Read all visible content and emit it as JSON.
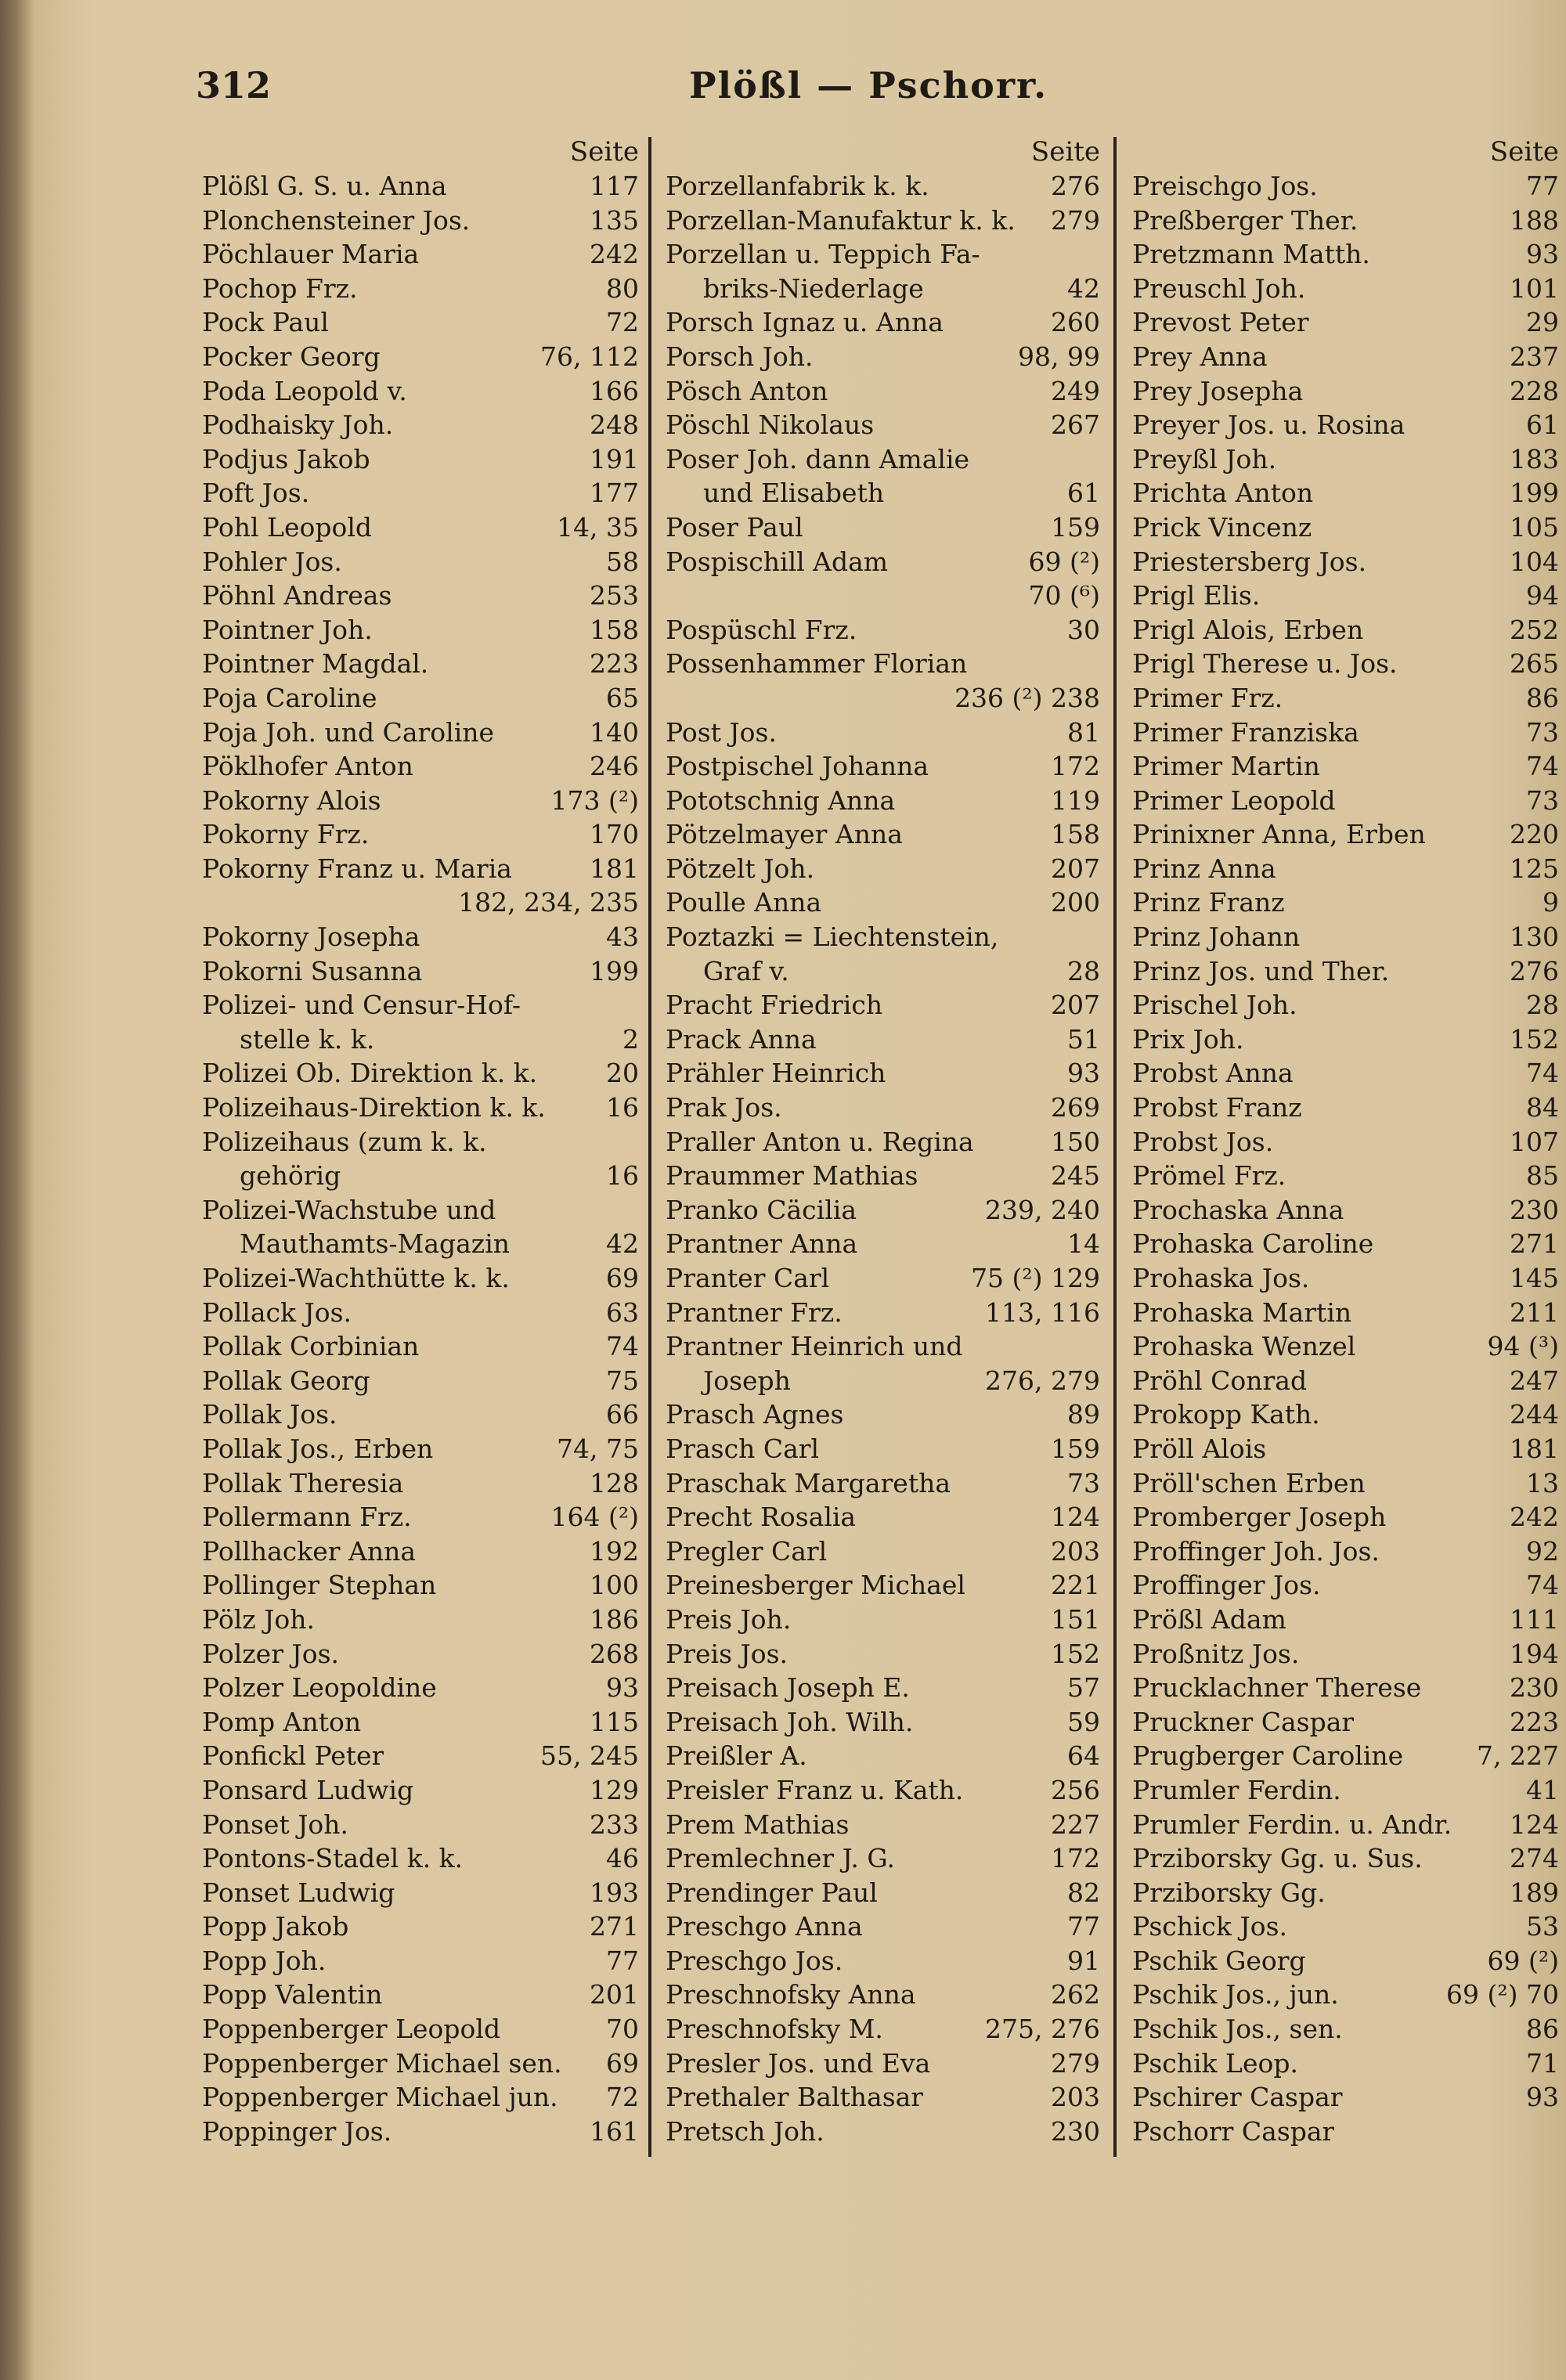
{
  "header": {
    "page_number": "312",
    "title": "Plößl — Pschorr."
  },
  "columns": [
    {
      "heading": "Seite",
      "entries": [
        {
          "name": "Plößl G. S. u. Anna",
          "pages": "117"
        },
        {
          "name": "Plonchensteiner Jos.",
          "pages": "135"
        },
        {
          "name": "Pöchlauer Maria",
          "pages": "242"
        },
        {
          "name": "Pochop Frz.",
          "pages": "80"
        },
        {
          "name": "Pock Paul",
          "pages": "72"
        },
        {
          "name": "Pocker Georg",
          "pages": "76, 112"
        },
        {
          "name": "Poda Leopold v.",
          "pages": "166"
        },
        {
          "name": "Podhaisky Joh.",
          "pages": "248"
        },
        {
          "name": "Podjus Jakob",
          "pages": "191"
        },
        {
          "name": "Poft Jos.",
          "pages": "177"
        },
        {
          "name": "Pohl Leopold",
          "pages": "14, 35"
        },
        {
          "name": "Pohler Jos.",
          "pages": "58"
        },
        {
          "name": "Pöhnl Andreas",
          "pages": "253"
        },
        {
          "name": "Pointner Joh.",
          "pages": "158"
        },
        {
          "name": "Pointner Magdal.",
          "pages": "223"
        },
        {
          "name": "Poja Caroline",
          "pages": "65"
        },
        {
          "name": "Poja Joh. und Caroline",
          "pages": "140"
        },
        {
          "name": "Pöklhofer Anton",
          "pages": "246"
        },
        {
          "name": "Pokorny Alois",
          "pages": "173 (²)"
        },
        {
          "name": "Pokorny Frz.",
          "pages": "170"
        },
        {
          "name": "Pokorny Franz u. Maria",
          "pages": "181",
          "pages_cont": "182, 234, 235"
        },
        {
          "name": "Pokorny Josepha",
          "pages": "43"
        },
        {
          "name": "Pokorni Susanna",
          "pages": "199"
        },
        {
          "name": "Polizei- und Censur-Hof-",
          "name_cont": "stelle k. k.",
          "pages_cont": "2"
        },
        {
          "name": "Polizei Ob. Direktion k. k.",
          "pages": "20"
        },
        {
          "name": "Polizeihaus-Direktion k. k.",
          "pages": "16"
        },
        {
          "name": "Polizeihaus (zum k. k.",
          "name_cont": "gehörig",
          "pages_cont": "16"
        },
        {
          "name": "Polizei-Wachstube und",
          "name_cont": "Mauthamts-Magazin",
          "pages_cont": "42"
        },
        {
          "name": "Polizei-Wachthütte k. k.",
          "pages": "69"
        },
        {
          "name": "Pollack Jos.",
          "pages": "63"
        },
        {
          "name": "Pollak Corbinian",
          "pages": "74"
        },
        {
          "name": "Pollak Georg",
          "pages": "75"
        },
        {
          "name": "Pollak Jos.",
          "pages": "66"
        },
        {
          "name": "Pollak Jos., Erben",
          "pages": "74, 75"
        },
        {
          "name": "Pollak Theresia",
          "pages": "128"
        },
        {
          "name": "Pollermann Frz.",
          "pages": "164 (²)"
        },
        {
          "name": "Pollhacker Anna",
          "pages": "192"
        },
        {
          "name": "Pollinger Stephan",
          "pages": "100"
        },
        {
          "name": "Pölz Joh.",
          "pages": "186"
        },
        {
          "name": "Polzer Jos.",
          "pages": "268"
        },
        {
          "name": "Polzer Leopoldine",
          "pages": "93"
        },
        {
          "name": "Pomp Anton",
          "pages": "115"
        },
        {
          "name": "Ponfickl Peter",
          "pages": "55, 245"
        },
        {
          "name": "Ponsard Ludwig",
          "pages": "129"
        },
        {
          "name": "Ponset Joh.",
          "pages": "233"
        },
        {
          "name": "Pontons-Stadel k. k.",
          "pages": "46"
        },
        {
          "name": "Ponset Ludwig",
          "pages": "193"
        },
        {
          "name": "Popp Jakob",
          "pages": "271"
        },
        {
          "name": "Popp Joh.",
          "pages": "77"
        },
        {
          "name": "Popp Valentin",
          "pages": "201"
        },
        {
          "name": "Poppenberger Leopold",
          "pages": "70"
        },
        {
          "name": "Poppenberger Michael sen.",
          "pages": "69"
        },
        {
          "name": "Poppenberger Michael jun.",
          "pages": "72"
        },
        {
          "name": "Poppinger Jos.",
          "pages": "161"
        }
      ]
    },
    {
      "heading": "Seite",
      "entries": [
        {
          "name": "Porzellanfabrik k. k.",
          "pages": "276"
        },
        {
          "name": "Porzellan-Manufaktur k. k.",
          "pages": "279"
        },
        {
          "name": "Porzellan u. Teppich Fa-",
          "name_cont": "briks-Niederlage",
          "pages_cont": "42"
        },
        {
          "name": "Porsch Ignaz u. Anna",
          "pages": "260"
        },
        {
          "name": "Porsch Joh.",
          "pages": "98, 99"
        },
        {
          "name": "Pösch Anton",
          "pages": "249"
        },
        {
          "name": "Pöschl Nikolaus",
          "pages": "267"
        },
        {
          "name": "Poser Joh. dann Amalie",
          "name_cont": "und Elisabeth",
          "pages_cont": "61"
        },
        {
          "name": "Poser Paul",
          "pages": "159"
        },
        {
          "name": "Pospischill Adam",
          "pages": "69 (²)",
          "pages_cont": "70 (⁶)"
        },
        {
          "name": "Pospüschl Frz.",
          "pages": "30"
        },
        {
          "name": "Possenhammer Florian",
          "pages_cont": "236 (²) 238"
        },
        {
          "name": "Post Jos.",
          "pages": "81"
        },
        {
          "name": "Postpischel Johanna",
          "pages": "172"
        },
        {
          "name": "Pototschnig Anna",
          "pages": "119"
        },
        {
          "name": "Pötzelmayer Anna",
          "pages": "158"
        },
        {
          "name": "Pötzelt Joh.",
          "pages": "207"
        },
        {
          "name": "Poulle Anna",
          "pages": "200"
        },
        {
          "name": "Poztazki = Liechtenstein,",
          "name_cont": "Graf v.",
          "pages_cont": "28"
        },
        {
          "name": "Pracht Friedrich",
          "pages": "207"
        },
        {
          "name": "Prack Anna",
          "pages": "51"
        },
        {
          "name": "Prähler Heinrich",
          "pages": "93"
        },
        {
          "name": "Prak Jos.",
          "pages": "269"
        },
        {
          "name": "Praller Anton u. Regina",
          "pages": "150"
        },
        {
          "name": "Praummer Mathias",
          "pages": "245"
        },
        {
          "name": "Pranko Cäcilia",
          "pages": "239, 240"
        },
        {
          "name": "Prantner Anna",
          "pages": "14"
        },
        {
          "name": "Pranter Carl",
          "pages": "75 (²) 129"
        },
        {
          "name": "Prantner Frz.",
          "pages": "113, 116"
        },
        {
          "name": "Prantner Heinrich und",
          "name_cont": "Joseph",
          "pages_cont": "276, 279"
        },
        {
          "name": "Prasch Agnes",
          "pages": "89"
        },
        {
          "name": "Prasch Carl",
          "pages": "159"
        },
        {
          "name": "Praschak Margaretha",
          "pages": "73"
        },
        {
          "name": "Precht Rosalia",
          "pages": "124"
        },
        {
          "name": "Pregler Carl",
          "pages": "203"
        },
        {
          "name": "Preinesberger Michael",
          "pages": "221"
        },
        {
          "name": "Preis Joh.",
          "pages": "151"
        },
        {
          "name": "Preis Jos.",
          "pages": "152"
        },
        {
          "name": "Preisach Joseph E.",
          "pages": "57"
        },
        {
          "name": "Preisach Joh. Wilh.",
          "pages": "59"
        },
        {
          "name": "Preißler A.",
          "pages": "64"
        },
        {
          "name": "Preisler Franz u. Kath.",
          "pages": "256"
        },
        {
          "name": "Prem Mathias",
          "pages": "227"
        },
        {
          "name": "Premlechner J. G.",
          "pages": "172"
        },
        {
          "name": "Prendinger Paul",
          "pages": "82"
        },
        {
          "name": "Preschgo Anna",
          "pages": "77"
        },
        {
          "name": "Preschgo Jos.",
          "pages": "91"
        },
        {
          "name": "Preschnofsky Anna",
          "pages": "262"
        },
        {
          "name": "Preschnofsky M.",
          "pages": "275, 276"
        },
        {
          "name": "Presler Jos. und Eva",
          "pages": "279"
        },
        {
          "name": "Prethaler Balthasar",
          "pages": "203"
        },
        {
          "name": "Pretsch Joh.",
          "pages": "230"
        }
      ]
    },
    {
      "heading": "Seite",
      "entries": [
        {
          "name": "Preischgo Jos.",
          "pages": "77"
        },
        {
          "name": "Preßberger Ther.",
          "pages": "188"
        },
        {
          "name": "Pretzmann Matth.",
          "pages": "93"
        },
        {
          "name": "Preuschl Joh.",
          "pages": "101"
        },
        {
          "name": "Prevost Peter",
          "pages": "29"
        },
        {
          "name": "Prey Anna",
          "pages": "237"
        },
        {
          "name": "Prey Josepha",
          "pages": "228"
        },
        {
          "name": "Preyer Jos. u. Rosina",
          "pages": "61"
        },
        {
          "name": "Preyßl Joh.",
          "pages": "183"
        },
        {
          "name": "Prichta Anton",
          "pages": "199"
        },
        {
          "name": "Prick Vincenz",
          "pages": "105"
        },
        {
          "name": "Priestersberg Jos.",
          "pages": "104"
        },
        {
          "name": "Prigl Elis.",
          "pages": "94"
        },
        {
          "name": "Prigl Alois, Erben",
          "pages": "252"
        },
        {
          "name": "Prigl Therese u. Jos.",
          "pages": "265"
        },
        {
          "name": "Primer Frz.",
          "pages": "86"
        },
        {
          "name": "Primer Franziska",
          "pages": "73"
        },
        {
          "name": "Primer Martin",
          "pages": "74"
        },
        {
          "name": "Primer Leopold",
          "pages": "73"
        },
        {
          "name": "Prinixner Anna, Erben",
          "pages": "220"
        },
        {
          "name": "Prinz Anna",
          "pages": "125"
        },
        {
          "name": "Prinz Franz",
          "pages": "9"
        },
        {
          "name": "Prinz Johann",
          "pages": "130"
        },
        {
          "name": "Prinz Jos. und Ther.",
          "pages": "276"
        },
        {
          "name": "Prischel Joh.",
          "pages": "28"
        },
        {
          "name": "Prix Joh.",
          "pages": "152"
        },
        {
          "name": "Probst Anna",
          "pages": "74"
        },
        {
          "name": "Probst Franz",
          "pages": "84"
        },
        {
          "name": "Probst Jos.",
          "pages": "107"
        },
        {
          "name": "Prömel Frz.",
          "pages": "85"
        },
        {
          "name": "Prochaska Anna",
          "pages": "230"
        },
        {
          "name": "Prohaska Caroline",
          "pages": "271"
        },
        {
          "name": "Prohaska Jos.",
          "pages": "145"
        },
        {
          "name": "Prohaska Martin",
          "pages": "211"
        },
        {
          "name": "Prohaska Wenzel",
          "pages": "94 (³)"
        },
        {
          "name": "Pröhl Conrad",
          "pages": "247"
        },
        {
          "name": "Prokopp Kath.",
          "pages": "244"
        },
        {
          "name": "Pröll Alois",
          "pages": "181"
        },
        {
          "name": "Pröll'schen Erben",
          "pages": "13"
        },
        {
          "name": "Promberger Joseph",
          "pages": "242"
        },
        {
          "name": "Proffinger Joh. Jos.",
          "pages": "92"
        },
        {
          "name": "Proffinger Jos.",
          "pages": "74"
        },
        {
          "name": "Prößl Adam",
          "pages": "111"
        },
        {
          "name": "Proßnitz Jos.",
          "pages": "194"
        },
        {
          "name": "Prucklachner Therese",
          "pages": "230"
        },
        {
          "name": "Pruckner Caspar",
          "pages": "223"
        },
        {
          "name": "Prugberger Caroline",
          "pages": "7, 227"
        },
        {
          "name": "Prumler Ferdin.",
          "pages": "41"
        },
        {
          "name": "Prumler Ferdin. u. Andr.",
          "pages": "124"
        },
        {
          "name": "Prziborsky Gg. u. Sus.",
          "pages": "274"
        },
        {
          "name": "Prziborsky Gg.",
          "pages": "189"
        },
        {
          "name": "Pschick Jos.",
          "pages": "53"
        },
        {
          "name": "Pschik Georg",
          "pages": "69 (²)"
        },
        {
          "name": "Pschik Jos., jun.",
          "pages": "69 (²) 70"
        },
        {
          "name": "Pschik Jos., sen.",
          "pages": "86"
        },
        {
          "name": "Pschik Leop.",
          "pages": "71"
        },
        {
          "name": "Pschirer Caspar",
          "pages": "93"
        },
        {
          "name": "Pschorr Caspar"
        }
      ]
    }
  ]
}
